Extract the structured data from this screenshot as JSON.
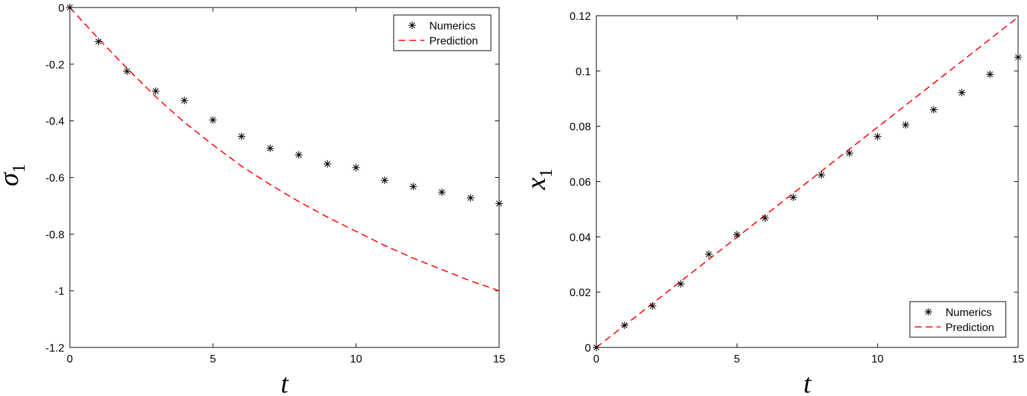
{
  "chart_data": [
    {
      "type": "scatter",
      "xlabel": "t",
      "ylabel": "σ",
      "ylabel_subscript": "1",
      "xlim": [
        0,
        15
      ],
      "ylim": [
        -1.2,
        0
      ],
      "xticks": [
        0,
        5,
        10,
        15
      ],
      "xtick_labels": [
        "0",
        "5",
        "10",
        "15"
      ],
      "yticks": [
        0,
        -0.2,
        -0.4,
        -0.6,
        -0.8,
        -1,
        -1.2
      ],
      "ytick_labels": [
        "0",
        "-0.2",
        "-0.4",
        "-0.6",
        "-0.8",
        "-1",
        "-1.2"
      ],
      "grid": false,
      "legend_position": "top-right",
      "series": [
        {
          "name": "Numerics",
          "style": "asterisk markers",
          "color": "#000000",
          "x": [
            0,
            1,
            2,
            3,
            4,
            5,
            6,
            7,
            8,
            9,
            10,
            11,
            12,
            13,
            14,
            15
          ],
          "y": [
            0,
            -0.12,
            -0.225,
            -0.295,
            -0.328,
            -0.397,
            -0.455,
            -0.497,
            -0.52,
            -0.552,
            -0.565,
            -0.61,
            -0.632,
            -0.652,
            -0.672,
            -0.692
          ]
        },
        {
          "name": "Prediction",
          "style": "dashed line",
          "color": "#ff0000",
          "x": [
            0,
            1,
            2,
            3,
            4,
            5,
            6,
            7,
            8,
            9,
            10,
            11,
            12,
            13,
            14,
            15
          ],
          "y": [
            0,
            -0.11,
            -0.215,
            -0.315,
            -0.405,
            -0.485,
            -0.56,
            -0.625,
            -0.685,
            -0.74,
            -0.79,
            -0.84,
            -0.885,
            -0.925,
            -0.965,
            -1.0
          ]
        }
      ]
    },
    {
      "type": "scatter",
      "xlabel": "t",
      "ylabel": "x",
      "ylabel_subscript": "1",
      "xlim": [
        0,
        15
      ],
      "ylim": [
        0,
        0.12
      ],
      "xticks": [
        0,
        5,
        10,
        15
      ],
      "xtick_labels": [
        "0",
        "5",
        "10",
        "15"
      ],
      "yticks": [
        0,
        0.02,
        0.04,
        0.06,
        0.08,
        0.1,
        0.12
      ],
      "ytick_labels": [
        "0",
        "0.02",
        "0.04",
        "0.06",
        "0.08",
        "0.1",
        "0.12"
      ],
      "grid": false,
      "legend_position": "bottom-right",
      "series": [
        {
          "name": "Numerics",
          "style": "asterisk markers",
          "color": "#000000",
          "x": [
            0,
            1,
            2,
            3,
            4,
            5,
            6,
            7,
            8,
            9,
            10,
            11,
            12,
            13,
            14,
            15
          ],
          "y": [
            0,
            0.008,
            0.015,
            0.023,
            0.0337,
            0.0408,
            0.0468,
            0.0543,
            0.0624,
            0.0703,
            0.0763,
            0.0805,
            0.086,
            0.0922,
            0.0988,
            0.105
          ]
        },
        {
          "name": "Prediction",
          "style": "dashed line",
          "color": "#ff0000",
          "x": [
            0,
            15
          ],
          "y": [
            0,
            0.1195
          ]
        }
      ]
    }
  ]
}
